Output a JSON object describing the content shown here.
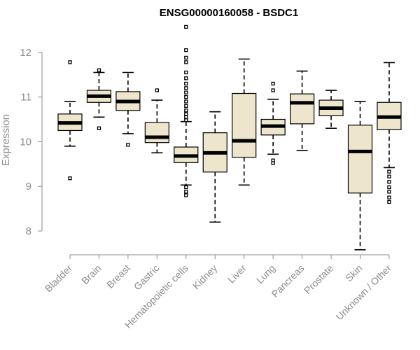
{
  "chart_data": {
    "type": "boxplot",
    "title": "ENSG00000160058 - BSDC1",
    "xlabel": "",
    "ylabel": "Expression",
    "ylim": [
      7.6,
      12.6
    ],
    "yticks": [
      8,
      9,
      10,
      11,
      12
    ],
    "box_fill": "#ede6cc",
    "categories": [
      "Bladder",
      "Brain",
      "Breast",
      "Gastric",
      "Hematopoietic cells",
      "Kidney",
      "Liver",
      "Lung",
      "Pancreas",
      "Prostate",
      "Skin",
      "Unknown / Other"
    ],
    "boxes": [
      {
        "whisker_low": 9.9,
        "q1": 10.25,
        "median": 10.42,
        "q3": 10.62,
        "whisker_high": 10.9,
        "outliers": [
          11.78,
          9.18
        ]
      },
      {
        "whisker_low": 10.55,
        "q1": 10.88,
        "median": 11.02,
        "q3": 11.15,
        "whisker_high": 11.55,
        "outliers": [
          11.6,
          10.3
        ]
      },
      {
        "whisker_low": 10.18,
        "q1": 10.7,
        "median": 10.9,
        "q3": 11.12,
        "whisker_high": 11.55,
        "outliers": [
          9.93
        ]
      },
      {
        "whisker_low": 9.75,
        "q1": 9.98,
        "median": 10.1,
        "q3": 10.43,
        "whisker_high": 10.93,
        "outliers": [
          11.15
        ]
      },
      {
        "whisker_low": 9.03,
        "q1": 9.53,
        "median": 9.68,
        "q3": 9.88,
        "whisker_high": 10.45,
        "outliers": [
          12.57,
          12.05,
          11.88,
          11.78,
          11.55,
          11.42,
          11.3,
          11.2,
          11.1,
          11.0,
          10.9,
          10.8,
          10.7,
          10.62,
          10.55,
          10.48,
          8.98,
          8.88,
          8.8
        ]
      },
      {
        "whisker_low": 8.2,
        "q1": 9.32,
        "median": 9.75,
        "q3": 10.2,
        "whisker_high": 10.67,
        "outliers": []
      },
      {
        "whisker_low": 9.03,
        "q1": 9.65,
        "median": 10.02,
        "q3": 11.08,
        "whisker_high": 11.85,
        "outliers": []
      },
      {
        "whisker_low": 9.72,
        "q1": 10.15,
        "median": 10.35,
        "q3": 10.5,
        "whisker_high": 10.95,
        "outliers": [
          11.3,
          11.15,
          9.58,
          9.52
        ]
      },
      {
        "whisker_low": 9.8,
        "q1": 10.4,
        "median": 10.87,
        "q3": 11.07,
        "whisker_high": 11.58,
        "outliers": []
      },
      {
        "whisker_low": 10.3,
        "q1": 10.58,
        "median": 10.75,
        "q3": 10.93,
        "whisker_high": 11.15,
        "outliers": []
      },
      {
        "whisker_low": 7.58,
        "q1": 8.85,
        "median": 9.78,
        "q3": 10.37,
        "whisker_high": 10.9,
        "outliers": []
      },
      {
        "whisker_low": 9.42,
        "q1": 10.27,
        "median": 10.55,
        "q3": 10.88,
        "whisker_high": 11.77,
        "outliers": [
          9.33,
          9.22,
          9.1,
          8.98,
          8.88,
          8.75,
          8.65
        ]
      }
    ]
  }
}
